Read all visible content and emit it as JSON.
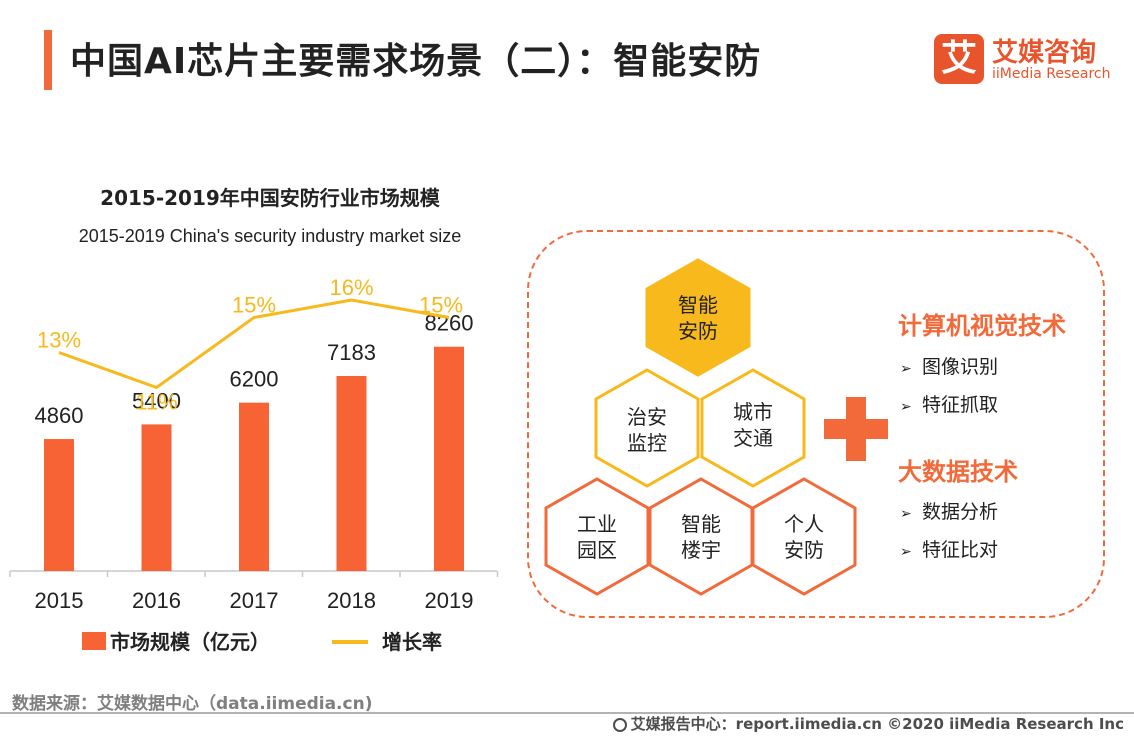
{
  "header": {
    "title": "中国AI芯片主要需求场景（二）：智能安防",
    "logo_mark": "艾",
    "logo_cn": "艾媒咨询",
    "logo_en": "iiMedia Research"
  },
  "chart_data": {
    "type": "bar",
    "title": "2015-2019年中国安防行业市场规模",
    "subtitle": "2015-2019 China's security industry market size",
    "categories": [
      "2015",
      "2016",
      "2017",
      "2018",
      "2019"
    ],
    "series": [
      {
        "name": "市场规模（亿元）",
        "type": "bar",
        "values": [
          4860,
          5400,
          6200,
          7183,
          8260
        ],
        "labels": [
          "4860",
          "5400",
          "6200",
          "7183",
          "8260"
        ],
        "color": "#f86336"
      },
      {
        "name": "增长率",
        "type": "line",
        "values": [
          13,
          11,
          15,
          16,
          15
        ],
        "labels": [
          "13%",
          "11%",
          "15%",
          "16%",
          "15%"
        ],
        "color": "#f7b91c"
      }
    ],
    "legend_position": "bottom",
    "grid": false
  },
  "diagram": {
    "hexagons": [
      {
        "label1": "智能",
        "label2": "安防",
        "style": "filled"
      },
      {
        "label1": "治安",
        "label2": "监控",
        "style": "yellow-outline"
      },
      {
        "label1": "城市",
        "label2": "交通",
        "style": "yellow-outline"
      },
      {
        "label1": "工业",
        "label2": "园区",
        "style": "orange-outline"
      },
      {
        "label1": "智能",
        "label2": "楼宇",
        "style": "orange-outline"
      },
      {
        "label1": "个人",
        "label2": "安防",
        "style": "orange-outline"
      }
    ],
    "tech_groups": [
      {
        "heading": "计算机视觉技术",
        "items": [
          "图像识别",
          "特征抓取"
        ]
      },
      {
        "heading": "大数据技术",
        "items": [
          "数据分析",
          "特征比对"
        ]
      }
    ],
    "arrow_glyph": "➢",
    "colors": {
      "yellow": "#f7b91c",
      "orange": "#f26a3a"
    }
  },
  "footer": {
    "source": "数据来源：艾媒数据中心（data.iimedia.cn)",
    "right": "艾媒报告中心：report.iimedia.cn  ©2020  iiMedia Research  Inc"
  }
}
